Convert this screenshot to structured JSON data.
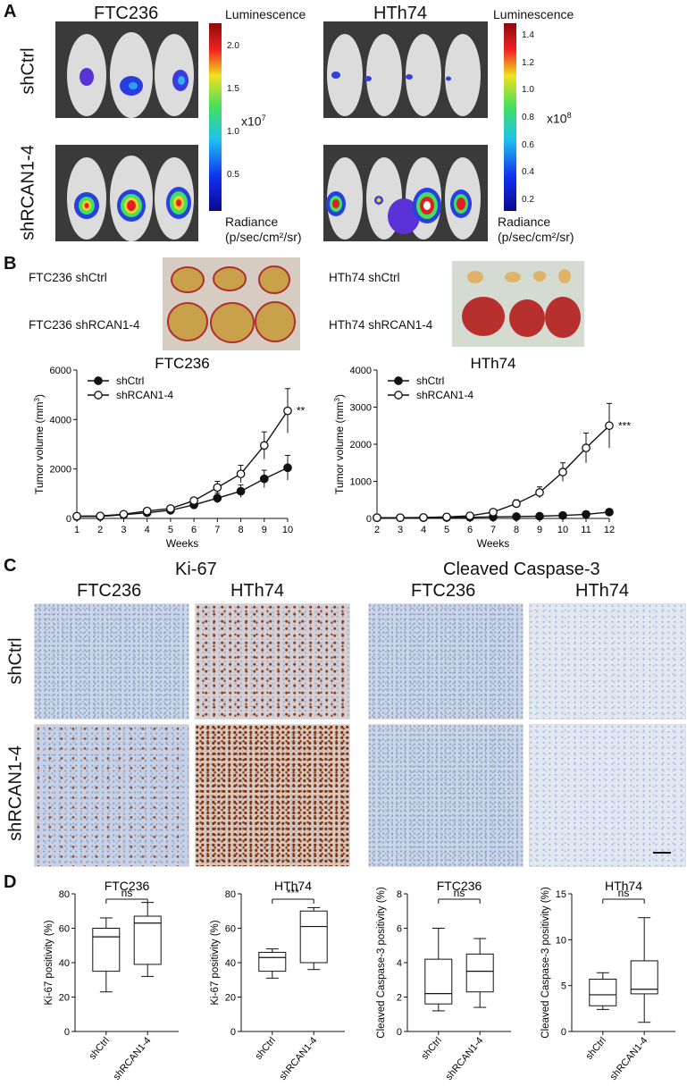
{
  "panels": {
    "A": "A",
    "B": "B",
    "C": "C",
    "D": "D"
  },
  "panelA": {
    "left": {
      "title": "FTC236",
      "colorbar_title": "Luminescence",
      "colorbar_ticks": [
        "2.0",
        "1.5",
        "1.0",
        "0.5"
      ],
      "multiplier": "x10",
      "exponent": "7",
      "radiance_label_1": "Radiance",
      "radiance_label_2": "(p/sec/cm²/sr)"
    },
    "right": {
      "title": "HTh74",
      "colorbar_title": "Luminescence",
      "colorbar_ticks": [
        "1.4",
        "1.2",
        "1.0",
        "0.8",
        "0.6",
        "0.4",
        "0.2"
      ],
      "multiplier": "x10",
      "exponent": "8",
      "radiance_label_1": "Radiance",
      "radiance_label_2": "(p/sec/cm²/sr)"
    },
    "row_labels": [
      "shCtrl",
      "shRCAN1-4"
    ]
  },
  "panelB": {
    "labels": {
      "ftc_shctrl": "FTC236 shCtrl",
      "ftc_shrcan": "FTC236 shRCAN1-4",
      "hth_shctrl": "HTh74 shCtrl",
      "hth_shrcan": "HTh74 shRCAN1-4"
    },
    "charts": [
      {
        "title": "FTC236",
        "ylabel": "Tumor volume (mm",
        "ylabel_sup": "3",
        "ylabel_end": ")",
        "xlabel": "Weeks",
        "significance": "**",
        "legend": [
          "shCtrl",
          "shRCAN1-4"
        ]
      },
      {
        "title": "HTh74",
        "ylabel": "Tumor volume (mm",
        "ylabel_sup": "3",
        "ylabel_end": ")",
        "xlabel": "Weeks",
        "significance": "***",
        "legend": [
          "shCtrl",
          "shRCAN1-4"
        ]
      }
    ]
  },
  "panelC": {
    "group_titles": [
      "Ki-67",
      "Cleaved Caspase-3"
    ],
    "column_labels": [
      "FTC236",
      "HTh74",
      "FTC236",
      "HTh74"
    ],
    "row_labels": [
      "shCtrl",
      "shRCAN1-4"
    ]
  },
  "panelD": {
    "plots": [
      {
        "title": "FTC236",
        "ylabel": "Ki-67 positivity (%)",
        "sig": "ns",
        "xcats": [
          "shCtrl",
          "shRCAN1-4"
        ]
      },
      {
        "title": "HTh74",
        "ylabel": "Ki-67 positivity (%)",
        "sig": "***",
        "xcats": [
          "shCtrl",
          "shRCAN1-4"
        ]
      },
      {
        "title": "FTC236",
        "ylabel": "Cleaved Caspase-3 positivity (%)",
        "sig": "ns",
        "xcats": [
          "shCtrl",
          "shRCAN1-4"
        ]
      },
      {
        "title": "HTh74",
        "ylabel": "Cleaved Caspase-3 positivity (%)",
        "sig": "ns",
        "xcats": [
          "shCtrl",
          "shRCAN1-4"
        ]
      }
    ]
  },
  "chart_data": [
    {
      "type": "line",
      "title": "FTC236",
      "xlabel": "Weeks",
      "ylabel": "Tumor volume (mm3)",
      "x": [
        1,
        2,
        3,
        4,
        5,
        6,
        7,
        8,
        9,
        10
      ],
      "xlim": [
        1,
        10
      ],
      "ylim": [
        0,
        6000
      ],
      "yticks": [
        0,
        2000,
        4000,
        6000
      ],
      "series": [
        {
          "name": "shCtrl",
          "marker": "filled",
          "values": [
            80,
            80,
            150,
            230,
            330,
            550,
            820,
            1100,
            1600,
            2050
          ],
          "errors": [
            20,
            20,
            40,
            50,
            80,
            120,
            200,
            250,
            350,
            500
          ]
        },
        {
          "name": "shRCAN1-4",
          "marker": "open",
          "values": [
            90,
            100,
            170,
            300,
            400,
            720,
            1250,
            1800,
            2950,
            4350
          ],
          "errors": [
            20,
            20,
            40,
            60,
            90,
            120,
            250,
            350,
            550,
            900
          ]
        }
      ],
      "annotation": "**",
      "legend": "top-left"
    },
    {
      "type": "line",
      "title": "HTh74",
      "xlabel": "Weeks",
      "ylabel": "Tumor volume (mm3)",
      "x": [
        2,
        3,
        4,
        5,
        6,
        7,
        8,
        9,
        10,
        11,
        12
      ],
      "xlim": [
        2,
        12
      ],
      "ylim": [
        0,
        4000
      ],
      "yticks": [
        0,
        1000,
        2000,
        3000,
        4000
      ],
      "series": [
        {
          "name": "shCtrl",
          "marker": "filled",
          "values": [
            20,
            20,
            20,
            25,
            30,
            40,
            50,
            60,
            80,
            110,
            170
          ],
          "errors": [
            5,
            5,
            5,
            5,
            8,
            10,
            10,
            15,
            20,
            25,
            30
          ]
        },
        {
          "name": "shRCAN1-4",
          "marker": "open",
          "values": [
            20,
            20,
            25,
            40,
            70,
            170,
            400,
            700,
            1250,
            1900,
            2500
          ],
          "errors": [
            5,
            5,
            8,
            10,
            20,
            40,
            100,
            150,
            250,
            400,
            600
          ]
        }
      ],
      "annotation": "***",
      "legend": "top-left"
    },
    {
      "type": "box",
      "title": "FTC236",
      "ylabel": "Ki-67 positivity (%)",
      "categories": [
        "shCtrl",
        "shRCAN1-4"
      ],
      "ylim": [
        0,
        80
      ],
      "yticks": [
        0,
        20,
        40,
        60,
        80
      ],
      "boxes": [
        {
          "min": 23,
          "q1": 35,
          "median": 55,
          "q3": 60,
          "max": 66
        },
        {
          "min": 32,
          "q1": 39,
          "median": 63,
          "q3": 67,
          "max": 75
        }
      ],
      "annotation": "ns"
    },
    {
      "type": "box",
      "title": "HTh74",
      "ylabel": "Ki-67 positivity (%)",
      "categories": [
        "shCtrl",
        "shRCAN1-4"
      ],
      "ylim": [
        0,
        80
      ],
      "yticks": [
        0,
        20,
        40,
        60,
        80
      ],
      "boxes": [
        {
          "min": 31,
          "q1": 35,
          "median": 43,
          "q3": 46,
          "max": 48
        },
        {
          "min": 36,
          "q1": 40,
          "median": 61,
          "q3": 70,
          "max": 72
        }
      ],
      "annotation": "***"
    },
    {
      "type": "box",
      "title": "FTC236",
      "ylabel": "Cleaved Caspase-3 positivity (%)",
      "categories": [
        "shCtrl",
        "shRCAN1-4"
      ],
      "ylim": [
        0,
        8
      ],
      "yticks": [
        0,
        2,
        4,
        6,
        8
      ],
      "boxes": [
        {
          "min": 1.2,
          "q1": 1.6,
          "median": 2.2,
          "q3": 4.2,
          "max": 6.0
        },
        {
          "min": 1.4,
          "q1": 2.3,
          "median": 3.5,
          "q3": 4.5,
          "max": 5.4
        }
      ],
      "annotation": "ns"
    },
    {
      "type": "box",
      "title": "HTh74",
      "ylabel": "Cleaved Caspase-3 positivity (%)",
      "categories": [
        "shCtrl",
        "shRCAN1-4"
      ],
      "ylim": [
        0,
        15
      ],
      "yticks": [
        0,
        5,
        10,
        15
      ],
      "boxes": [
        {
          "min": 2.4,
          "q1": 2.8,
          "median": 4.0,
          "q3": 5.7,
          "max": 6.4
        },
        {
          "min": 1.0,
          "q1": 4.1,
          "median": 4.6,
          "q3": 7.7,
          "max": 12.4
        }
      ],
      "annotation": "ns"
    }
  ]
}
